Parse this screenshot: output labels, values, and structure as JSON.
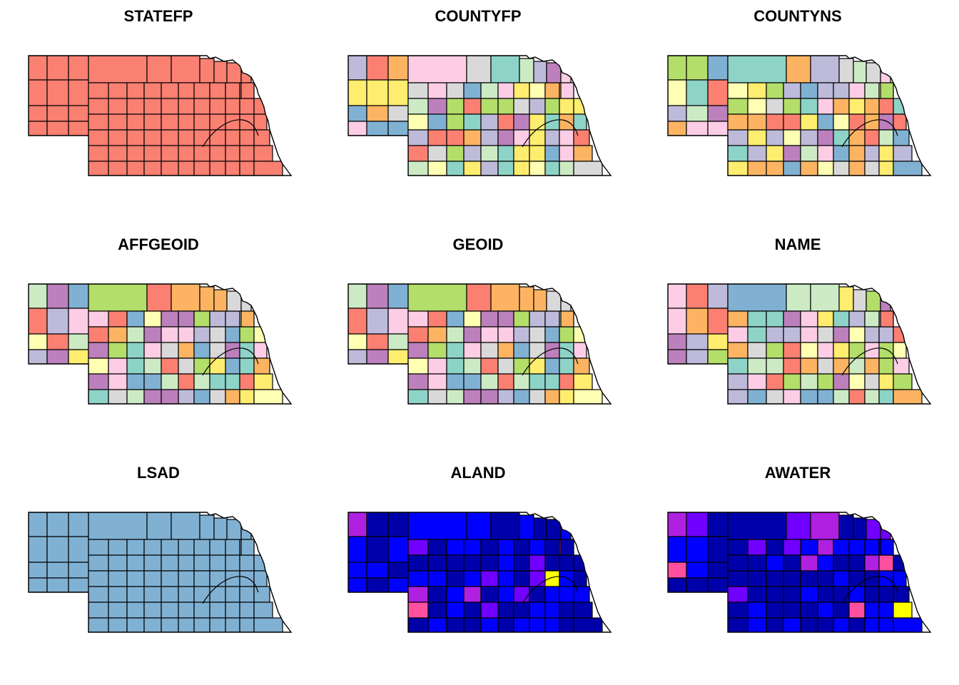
{
  "figure": {
    "panels": [
      {
        "title": "STATEFP",
        "scheme": "uniform",
        "fill": "#FA8072"
      },
      {
        "title": "COUNTYFP",
        "scheme": "categorical",
        "seed": 3
      },
      {
        "title": "COUNTYNS",
        "scheme": "categorical",
        "seed": 7
      },
      {
        "title": "AFFGEOID",
        "scheme": "categorical",
        "seed": 11
      },
      {
        "title": "GEOID",
        "scheme": "categorical",
        "seed": 11
      },
      {
        "title": "NAME",
        "scheme": "categorical",
        "seed": 19
      },
      {
        "title": "LSAD",
        "scheme": "uniform",
        "fill": "#80B1D3"
      },
      {
        "title": "ALAND",
        "scheme": "continuous",
        "seed": 23
      },
      {
        "title": "AWATER",
        "scheme": "continuous",
        "seed": 29
      }
    ],
    "categorical_palette": [
      "#8DD3C7",
      "#FFFFB3",
      "#BEBADA",
      "#FB8072",
      "#80B1D3",
      "#FDB462",
      "#B3DE69",
      "#FCCDE5",
      "#D9D9D9",
      "#BC80BD",
      "#CCEBC5",
      "#FFED6F"
    ],
    "continuous_palette": [
      "#0000AA",
      "#0000FF",
      "#7000FF",
      "#B020E0",
      "#FF50A0",
      "#FF6060",
      "#FFFF00"
    ]
  }
}
